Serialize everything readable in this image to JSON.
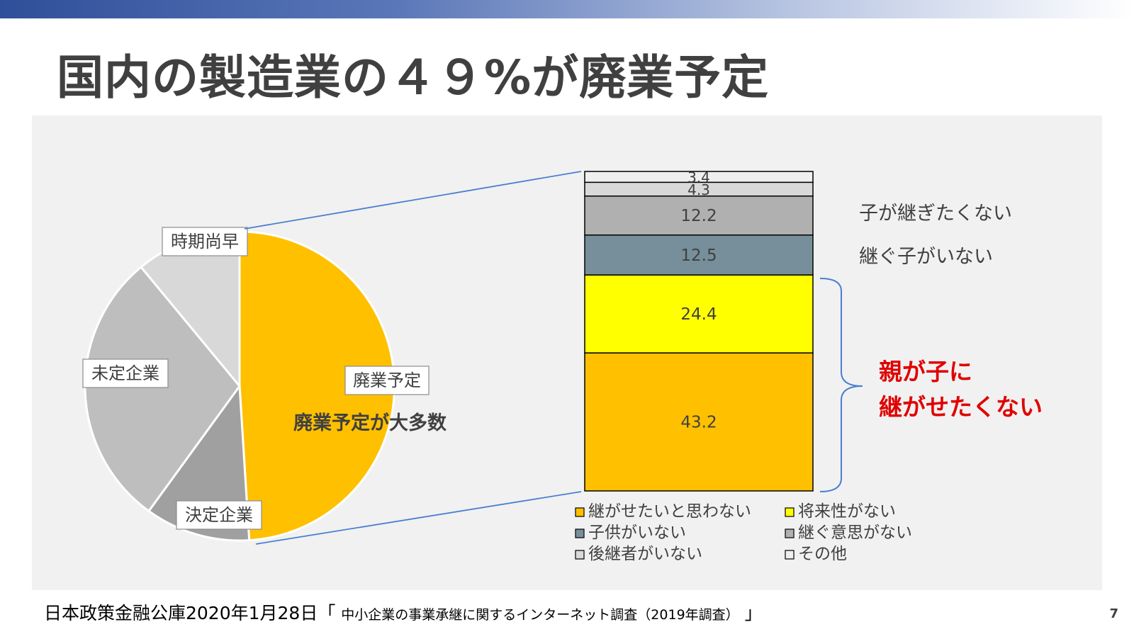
{
  "slide": {
    "title": "国内の製造業の４９%が廃業予定",
    "page_number": "7"
  },
  "footer": {
    "source": "日本政策金融公庫2020年1月28日「",
    "survey": "中小企業の事業承継に関するインターネット調査（2019年調査）",
    "close": "」"
  },
  "colors": {
    "gold": "#FFC000",
    "yellow": "#FFFF00",
    "slate": "#778F9A",
    "mid_gray": "#B0B0B0",
    "light_gray": "#D9D9D9",
    "pale": "#EFEFEF",
    "pie_gray_1": "#A0A0A0",
    "pie_gray_2": "#BEBEBE",
    "pie_gray_3": "#D8D8D8",
    "connector": "#4A7FD0",
    "red": "#E00000"
  },
  "chart_data": [
    {
      "type": "pie",
      "title": "",
      "slices": [
        {
          "label": "廃業予定",
          "value": 49.0,
          "color": "#FFC000"
        },
        {
          "label": "決定企業",
          "value": 11.0,
          "color": "#A0A0A0"
        },
        {
          "label": "未定企業",
          "value": 29.0,
          "color": "#BEBEBE"
        },
        {
          "label": "時期尚早",
          "value": 11.0,
          "color": "#D8D8D8"
        }
      ],
      "annotation": "廃業予定が大多数"
    },
    {
      "type": "bar",
      "stacked": true,
      "title": "",
      "series": [
        {
          "name": "継がせたいと思わない",
          "value": 43.2,
          "color": "#FFC000"
        },
        {
          "name": "将来性がない",
          "value": 24.4,
          "color": "#FFFF00"
        },
        {
          "name": "子供がいない",
          "value": 12.5,
          "color": "#778F9A"
        },
        {
          "name": "継ぐ意思がない",
          "value": 12.2,
          "color": "#B0B0B0"
        },
        {
          "name": "後継者がいない",
          "value": 4.3,
          "color": "#D9D9D9"
        },
        {
          "name": "その他",
          "value": 3.4,
          "color": "#EFEFEF"
        }
      ],
      "ylim": [
        0,
        100
      ],
      "side_labels": [
        "子が継ぎたくない",
        "継ぐ子がいない"
      ],
      "brace_label": [
        "親が子に",
        "継がせたくない"
      ]
    }
  ]
}
